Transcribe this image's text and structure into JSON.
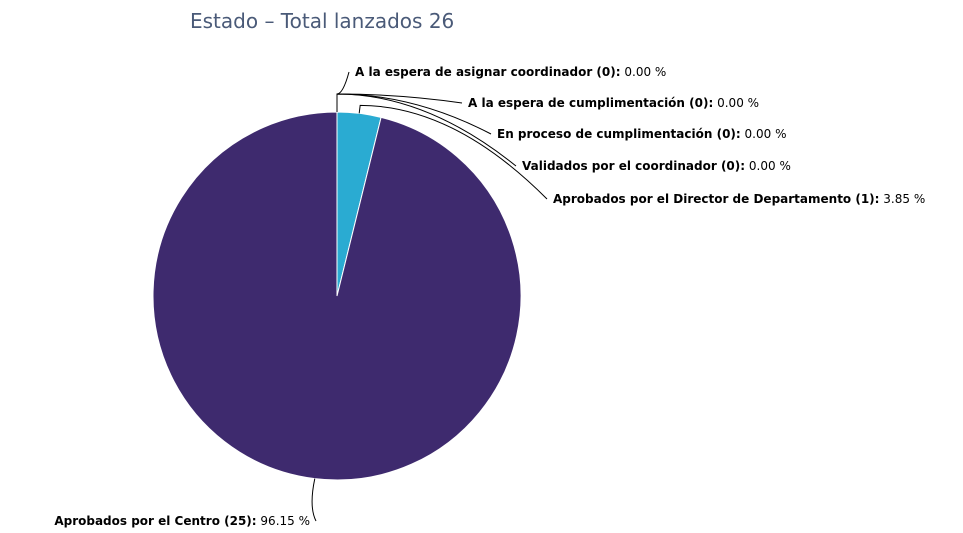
{
  "chart_data": {
    "type": "pie",
    "title": "Estado – Total lanzados 26",
    "categories": [
      "A la espera de asignar coordinador (0):",
      "A la espera de cumplimentación (0):",
      "En proceso de cumplimentación (0):",
      "Validados por el coordinador (0):",
      "Aprobados por el Director de Departamento (1):",
      "Aprobados por el Centro (25):"
    ],
    "values": [
      0,
      0,
      0,
      0,
      3.85,
      96.15
    ],
    "value_labels": [
      "0.00 %",
      "0.00 %",
      "0.00 %",
      "0.00 %",
      "3.85 %",
      "96.15 %"
    ],
    "colors": [
      "#7cb5ec",
      "#90ed7d",
      "#f7a35c",
      "#8085e9",
      "#2aabd2",
      "#3e2a6e"
    ]
  }
}
